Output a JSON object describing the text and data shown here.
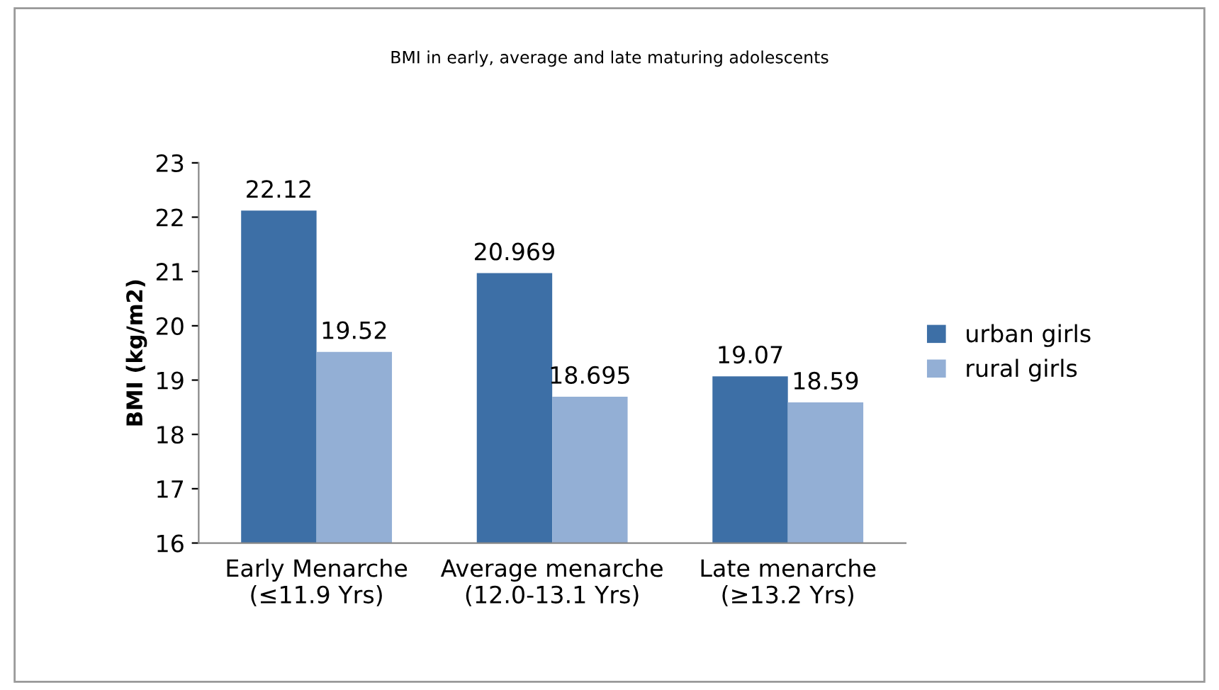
{
  "chart_data": {
    "type": "bar",
    "title": "BMI in early, average and late maturing adolescents",
    "ylabel": "BMI (kg/m2)",
    "categories": [
      "Early Menarche\n(≤11.9 Yrs)",
      "Average menarche\n(12.0-13.1 Yrs)",
      "Late menarche\n(≥13.2 Yrs)"
    ],
    "series": [
      {
        "name": "urban girls",
        "color": "#3d6fa6",
        "values": [
          22.12,
          20.969,
          19.07
        ]
      },
      {
        "name": "rural girls",
        "color": "#93afd5",
        "values": [
          19.52,
          18.695,
          18.59
        ]
      }
    ],
    "ylim": [
      16,
      23
    ],
    "yticks": [
      16,
      17,
      18,
      19,
      20,
      21,
      22,
      23
    ],
    "grid": false,
    "legend": "right",
    "data_labels": true
  }
}
